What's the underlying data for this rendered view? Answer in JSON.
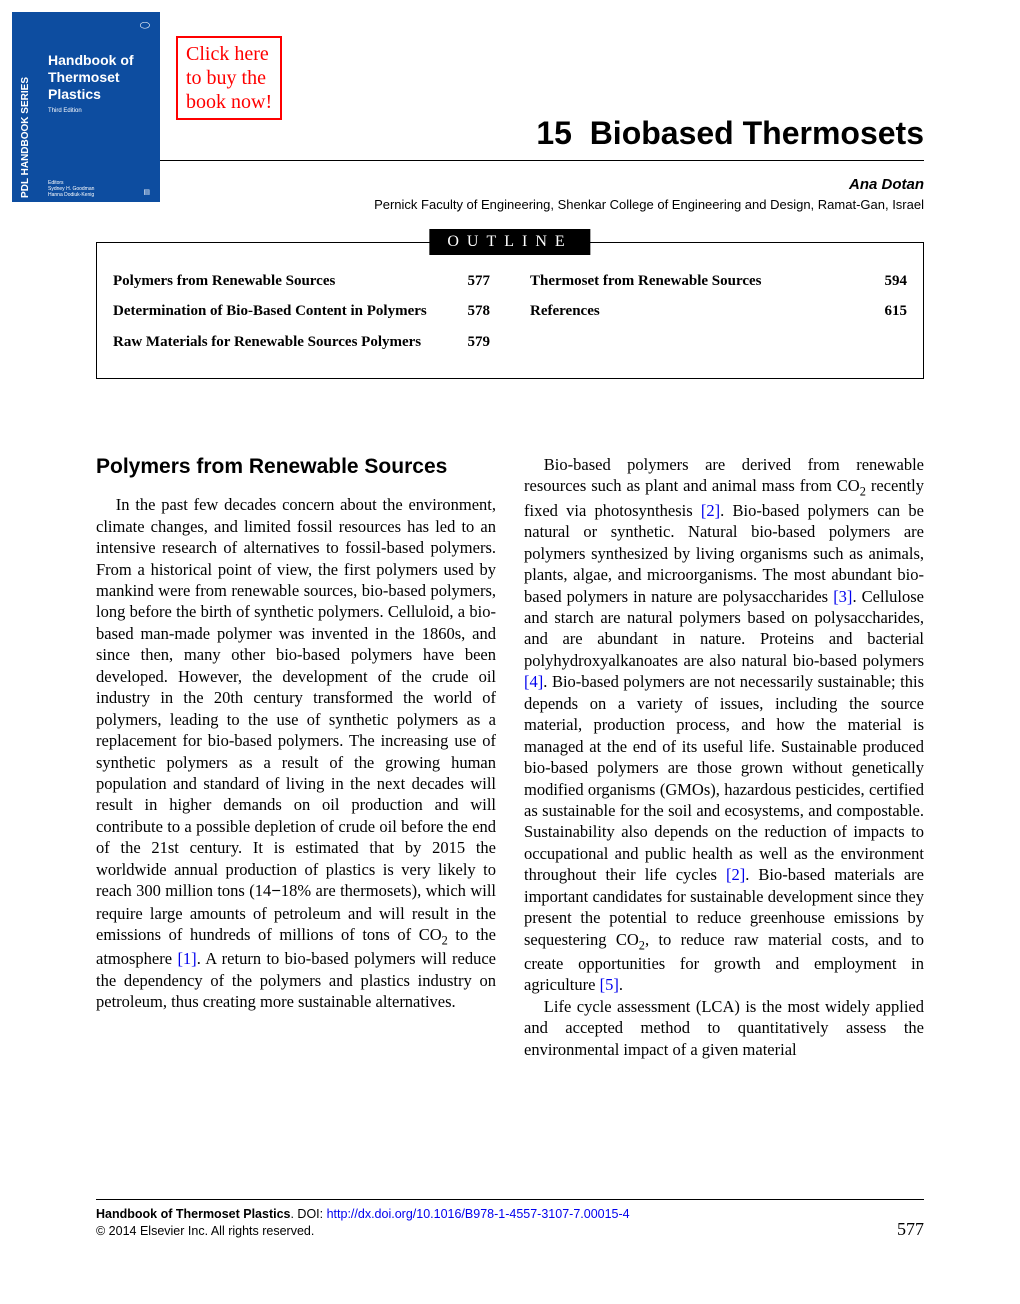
{
  "cover": {
    "spine": "PDL HANDBOOK SERIES",
    "title_line1": "Handbook of",
    "title_line2": "Thermoset",
    "title_line3": "Plastics",
    "edition": "Third Edition",
    "editor_label": "Editors",
    "editor1": "Sydney H. Goodman",
    "editor2": "Hanna Dodiuk-Kenig",
    "logo": "⬭",
    "publisher": "▤"
  },
  "buy_box": {
    "line1": "Click here",
    "line2": "to buy the",
    "line3": "book now!"
  },
  "chapter": {
    "number": "15",
    "title": "Biobased Thermosets",
    "author": "Ana Dotan",
    "affiliation": "Pernick Faculty of Engineering, Shenkar College of Engineering and Design, Ramat-Gan, Israel"
  },
  "outline": {
    "header": "OUTLINE",
    "left": [
      {
        "label": "Polymers from Renewable Sources",
        "page": "577"
      },
      {
        "label": "Determination of Bio-Based Content in Polymers",
        "page": "578"
      },
      {
        "label": "Raw Materials for Renewable Sources Polymers",
        "page": "579"
      }
    ],
    "right": [
      {
        "label": "Thermoset from Renewable Sources",
        "page": "594"
      },
      {
        "label": "References",
        "page": "615"
      }
    ]
  },
  "section_heading": "Polymers from Renewable Sources",
  "body": {
    "left_p1_a": "In the past few decades concern about the environment, climate changes, and limited fossil resources has led to an intensive research of alternatives to fossil-based polymers. From a historical point of view, the first polymers used by mankind were from renewable sources, bio-based polymers, long before the birth of synthetic polymers. Celluloid, a bio-based man-made polymer was invented in the 1860s, and since then, many other bio-based polymers have been developed. However, the development of the crude oil industry in the 20th century transformed the world of polymers, leading to the use of synthetic polymers as a replacement for bio-based polymers. The increasing use of synthetic polymers as a result of the growing human population and standard of living in the next decades will result in higher demands on oil production and will contribute to a possible depletion of crude oil before the end of the 21st century. It is estimated that by 2015 the worldwide annual production of plastics is very likely to reach 300 million tons (14",
    "left_p1_b": "18% are thermosets), which will require large amounts of petroleum and will result in the emissions of hundreds of millions of tons of CO",
    "left_p1_c": " to the atmosphere ",
    "left_p1_d": ". A return to bio-based polymers will reduce the dependency of the polymers and plastics industry on petroleum, thus creating more sustainable alternatives.",
    "right_p1_a": "Bio-based polymers are derived from renewable resources such as plant and animal mass from CO",
    "right_p1_b": " recently fixed via photosynthesis ",
    "right_p1_c": ". Bio-based polymers can be natural or synthetic. Natural bio-based polymers are polymers synthesized by living organisms such as animals, plants, algae, and microorganisms. The most abundant bio-based polymers in nature are polysaccharides ",
    "right_p1_d": ". Cellulose and starch are natural polymers based on polysaccharides, and are abundant in nature. Proteins and bacterial polyhydroxyalkanoates are also natural bio-based polymers ",
    "right_p1_e": ". Bio-based polymers are not necessarily sustainable; this depends on a variety of issues, including the source material, production process, and how the material is managed at the end of its useful life. Sustainable produced bio-based polymers are those grown without genetically modified organisms (GMOs), hazardous pesticides, certified as sustainable for the soil and ecosystems, and compostable. Sustainability also depends on the reduction of impacts to occupational and public health as well as the environment throughout their life cycles ",
    "right_p1_f": ". Bio-based materials are important candidates for sustainable development since they present the potential to reduce greenhouse emissions by sequestering CO",
    "right_p1_g": ", to reduce raw material costs, and to create opportunities for growth and employment in agriculture ",
    "right_p1_h": ".",
    "right_p2": "Life cycle assessment (LCA) is the most widely applied and accepted method to quantitatively assess the environmental impact of a given material"
  },
  "refs": {
    "r1": "[1]",
    "r2": "[2]",
    "r3": "[3]",
    "r4": "[4]",
    "r5": "[5]"
  },
  "footer": {
    "book_title": "Handbook of Thermoset Plastics",
    "doi_label": ". DOI: ",
    "doi": "http://dx.doi.org/10.1016/B978-1-4557-3107-7.00015-4",
    "copyright": "© 2014 Elsevier Inc. All rights reserved.",
    "page_number": "577"
  },
  "colors": {
    "brand_blue": "#0d4da0",
    "link_blue": "#0000ee",
    "red": "#ff0000",
    "black": "#000000",
    "white": "#ffffff"
  }
}
